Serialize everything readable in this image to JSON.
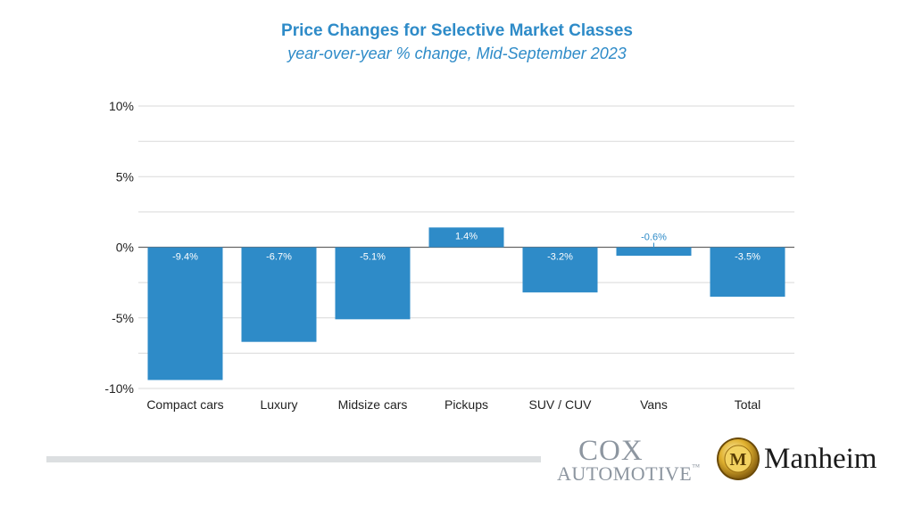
{
  "colors": {
    "bar": "#2e8bc8",
    "title": "#2e8bc8",
    "grid": "#d9d9d9",
    "axis": "#666666",
    "bar_label_inside": "#ffffff",
    "bar_label_outside": "#2e8bc8"
  },
  "chart_data": {
    "type": "bar",
    "title": "Price Changes for Selective Market Classes",
    "subtitle": "year-over-year % change, Mid-September 2023",
    "categories": [
      "Compact cars",
      "Luxury",
      "Midsize cars",
      "Pickups",
      "SUV / CUV",
      "Vans",
      "Total"
    ],
    "values": [
      -9.4,
      -6.7,
      -5.1,
      1.4,
      -3.2,
      -0.6,
      -3.5
    ],
    "data_labels": [
      "-9.4%",
      "-6.7%",
      "-5.1%",
      "1.4%",
      "-3.2%",
      "-0.6%",
      "-3.5%"
    ],
    "ylim": [
      -10,
      10
    ],
    "yticks": [
      10,
      5,
      0,
      -5,
      -10
    ],
    "ytick_labels": [
      "10%",
      "5%",
      "0%",
      "-5%",
      "-10%"
    ],
    "minor_gridlines": [
      7.5,
      2.5,
      -2.5,
      -7.5
    ],
    "grid": true
  },
  "logos": {
    "cox": {
      "line1": "COX",
      "line2": "AUTOMOTIVE",
      "tm": "™"
    },
    "manheim": {
      "name": "Manheim",
      "badge_letter": "M",
      "icon": "manheim-badge-icon"
    }
  }
}
